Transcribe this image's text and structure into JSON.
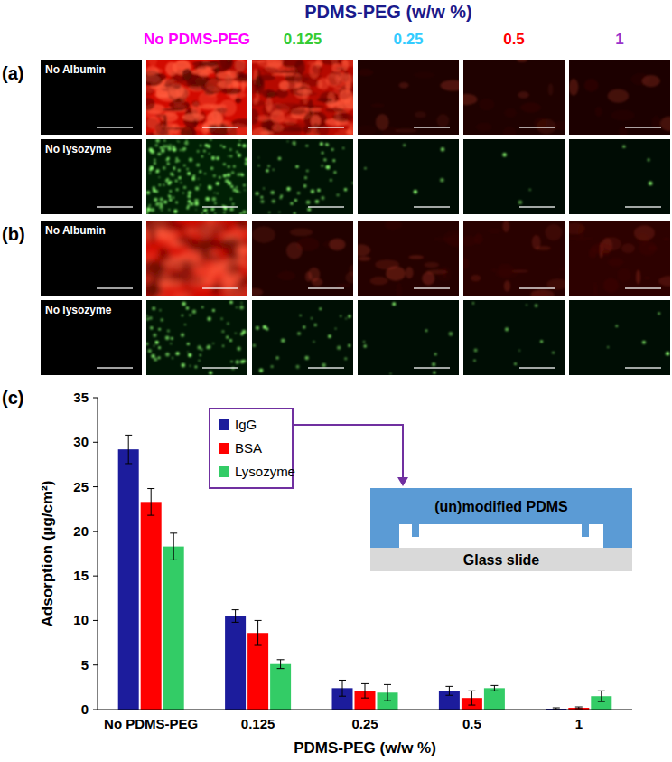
{
  "figure": {
    "title": "PDMS-PEG (w/w %)",
    "title_color": "#1a1a8c",
    "columns": [
      {
        "label": "No PDMS-PEG",
        "color": "#ff00ff"
      },
      {
        "label": "0.125",
        "color": "#33cc33"
      },
      {
        "label": "0.25",
        "color": "#33ccff"
      },
      {
        "label": "0.5",
        "color": "#ff0000"
      },
      {
        "label": "1",
        "color": "#9933cc"
      }
    ],
    "panels": [
      {
        "label": "(a)",
        "rows": [
          "No Albumin",
          "No lysozyme"
        ]
      },
      {
        "label": "(b)",
        "rows": [
          "No Albumin",
          "No lysozyme"
        ]
      }
    ],
    "chart_label": "(c)"
  },
  "chart_data": {
    "type": "bar",
    "x_label": "PDMS-PEG (w/w %)",
    "y_label": "Adsorption (µg/cm²)",
    "categories": [
      "No PDMS-PEG",
      "0.125",
      "0.25",
      "0.5",
      "1"
    ],
    "series": [
      {
        "name": "IgG",
        "color": "#1c1c9c",
        "values": [
          29.2,
          10.5,
          2.4,
          2.1,
          0.1
        ],
        "errors": [
          1.6,
          0.7,
          0.9,
          0.5,
          0.1
        ]
      },
      {
        "name": "BSA",
        "color": "#ff0000",
        "values": [
          23.3,
          8.6,
          2.1,
          1.3,
          0.2
        ],
        "errors": [
          1.5,
          1.4,
          0.8,
          0.8,
          0.1
        ]
      },
      {
        "name": "Lysozyme",
        "color": "#33cc66",
        "values": [
          18.3,
          5.1,
          1.9,
          2.4,
          1.5
        ],
        "errors": [
          1.5,
          0.5,
          0.9,
          0.3,
          0.6
        ]
      }
    ],
    "ylim": [
      0,
      35
    ],
    "yticks": [
      0,
      5,
      10,
      15,
      20,
      25,
      30,
      35
    ],
    "grid": false,
    "legend": "top",
    "annotations": [
      "(un)modified PDMS",
      "Glass slide"
    ]
  }
}
